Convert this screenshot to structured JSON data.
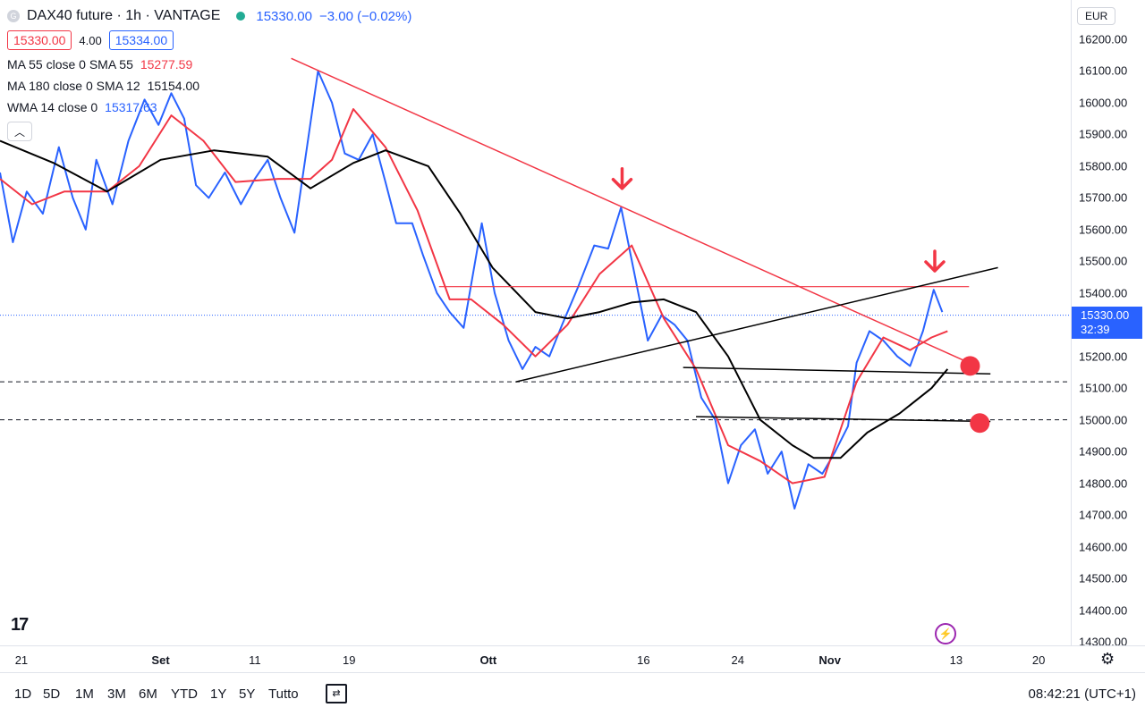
{
  "header": {
    "symbol": "DAX40 future · 1h · VANTAGE",
    "last": "15330.00",
    "change": "−3.00 (−0.02%)",
    "bid": "15330.00",
    "spread": "4.00",
    "ask": "15334.00"
  },
  "indicators": [
    {
      "label": "MA 55 close 0 SMA 55",
      "value": "15277.59",
      "color": "#f23645"
    },
    {
      "label": "MA 180 close 0 SMA 12",
      "value": "15154.00",
      "color": "#131722"
    },
    {
      "label": "WMA 14 close 0",
      "value": "15317.63",
      "color": "#2962ff"
    }
  ],
  "colors": {
    "price": "#2962ff",
    "ma55": "#f23645",
    "ma180": "#000000",
    "trend_red": "#f23645",
    "marker": "#f23645"
  },
  "currency": "EUR",
  "last_price_label": "15330.00",
  "countdown": "32:39",
  "clock": "08:42:21 (UTC+1)",
  "timeframes": [
    "1D",
    "5D",
    "1M",
    "3M",
    "6M",
    "YTD",
    "1Y",
    "5Y",
    "Tutto"
  ],
  "icons": [
    "compare-icon",
    "settings-gear-icon",
    "tradingview-logo-icon",
    "bolt-icon",
    "arrow-down-icon"
  ],
  "chart_data": {
    "type": "line",
    "ylim": [
      14300,
      16200
    ],
    "y_ticks": [
      16200,
      16100,
      16000,
      15900,
      15800,
      15700,
      15600,
      15500,
      15400,
      15300,
      15200,
      15100,
      15000,
      14900,
      14800,
      14700,
      14600,
      14500,
      14400,
      14300
    ],
    "y_tick_labels": [
      "16200.00",
      "16100.00",
      "16000.00",
      "15900.00",
      "15800.00",
      "15700.00",
      "15600.00",
      "15500.00",
      "15400.00",
      "15300.00",
      "15200.00",
      "15100.00",
      "15000.00",
      "14900.00",
      "14800.00",
      "14700.00",
      "14600.00",
      "14500.00",
      "14400.00",
      "14300.00"
    ],
    "x_ticks": [
      {
        "label": "21",
        "t": 0.02
      },
      {
        "label": "Set",
        "t": 0.15
      },
      {
        "label": "11",
        "t": 0.238
      },
      {
        "label": "19",
        "t": 0.326
      },
      {
        "label": "Ott",
        "t": 0.456
      },
      {
        "label": "16",
        "t": 0.601
      },
      {
        "label": "24",
        "t": 0.689
      },
      {
        "label": "Nov",
        "t": 0.775
      },
      {
        "label": "13",
        "t": 0.893
      },
      {
        "label": "20",
        "t": 0.97
      }
    ],
    "series": [
      {
        "key": "price",
        "points": [
          [
            0,
            15780
          ],
          [
            0.012,
            15560
          ],
          [
            0.025,
            15720
          ],
          [
            0.04,
            15650
          ],
          [
            0.055,
            15860
          ],
          [
            0.068,
            15700
          ],
          [
            0.08,
            15600
          ],
          [
            0.09,
            15820
          ],
          [
            0.105,
            15680
          ],
          [
            0.12,
            15880
          ],
          [
            0.135,
            16010
          ],
          [
            0.148,
            15930
          ],
          [
            0.16,
            16030
          ],
          [
            0.172,
            15950
          ],
          [
            0.183,
            15740
          ],
          [
            0.195,
            15700
          ],
          [
            0.21,
            15780
          ],
          [
            0.225,
            15680
          ],
          [
            0.238,
            15760
          ],
          [
            0.25,
            15820
          ],
          [
            0.262,
            15700
          ],
          [
            0.275,
            15590
          ],
          [
            0.285,
            15820
          ],
          [
            0.297,
            16100
          ],
          [
            0.31,
            16000
          ],
          [
            0.322,
            15840
          ],
          [
            0.335,
            15820
          ],
          [
            0.348,
            15900
          ],
          [
            0.36,
            15750
          ],
          [
            0.37,
            15620
          ],
          [
            0.385,
            15620
          ],
          [
            0.395,
            15520
          ],
          [
            0.408,
            15400
          ],
          [
            0.42,
            15340
          ],
          [
            0.433,
            15290
          ],
          [
            0.45,
            15620
          ],
          [
            0.462,
            15400
          ],
          [
            0.475,
            15250
          ],
          [
            0.488,
            15160
          ],
          [
            0.5,
            15230
          ],
          [
            0.513,
            15200
          ],
          [
            0.525,
            15300
          ],
          [
            0.54,
            15420
          ],
          [
            0.555,
            15550
          ],
          [
            0.568,
            15540
          ],
          [
            0.58,
            15670
          ],
          [
            0.592,
            15470
          ],
          [
            0.605,
            15250
          ],
          [
            0.618,
            15330
          ],
          [
            0.63,
            15300
          ],
          [
            0.642,
            15250
          ],
          [
            0.655,
            15070
          ],
          [
            0.668,
            15000
          ],
          [
            0.68,
            14800
          ],
          [
            0.692,
            14920
          ],
          [
            0.705,
            14970
          ],
          [
            0.717,
            14830
          ],
          [
            0.73,
            14900
          ],
          [
            0.742,
            14720
          ],
          [
            0.755,
            14860
          ],
          [
            0.768,
            14830
          ],
          [
            0.78,
            14900
          ],
          [
            0.792,
            14980
          ],
          [
            0.8,
            15180
          ],
          [
            0.812,
            15280
          ],
          [
            0.825,
            15250
          ],
          [
            0.838,
            15200
          ],
          [
            0.85,
            15170
          ],
          [
            0.862,
            15280
          ],
          [
            0.872,
            15410
          ],
          [
            0.88,
            15340
          ]
        ],
        "color": "#2962ff"
      },
      {
        "key": "ma55",
        "points": [
          [
            0,
            15760
          ],
          [
            0.03,
            15680
          ],
          [
            0.06,
            15720
          ],
          [
            0.1,
            15720
          ],
          [
            0.13,
            15800
          ],
          [
            0.16,
            15960
          ],
          [
            0.19,
            15880
          ],
          [
            0.22,
            15750
          ],
          [
            0.26,
            15760
          ],
          [
            0.29,
            15760
          ],
          [
            0.31,
            15820
          ],
          [
            0.33,
            15980
          ],
          [
            0.36,
            15860
          ],
          [
            0.39,
            15660
          ],
          [
            0.42,
            15380
          ],
          [
            0.44,
            15380
          ],
          [
            0.47,
            15300
          ],
          [
            0.5,
            15200
          ],
          [
            0.53,
            15300
          ],
          [
            0.56,
            15460
          ],
          [
            0.59,
            15550
          ],
          [
            0.62,
            15320
          ],
          [
            0.65,
            15160
          ],
          [
            0.68,
            14920
          ],
          [
            0.71,
            14870
          ],
          [
            0.74,
            14800
          ],
          [
            0.77,
            14820
          ],
          [
            0.8,
            15120
          ],
          [
            0.825,
            15260
          ],
          [
            0.85,
            15220
          ],
          [
            0.87,
            15260
          ],
          [
            0.885,
            15280
          ]
        ],
        "color": "#f23645"
      },
      {
        "key": "ma180",
        "points": [
          [
            0,
            15880
          ],
          [
            0.05,
            15810
          ],
          [
            0.1,
            15720
          ],
          [
            0.15,
            15820
          ],
          [
            0.2,
            15850
          ],
          [
            0.25,
            15830
          ],
          [
            0.29,
            15730
          ],
          [
            0.33,
            15810
          ],
          [
            0.36,
            15850
          ],
          [
            0.4,
            15800
          ],
          [
            0.43,
            15650
          ],
          [
            0.46,
            15480
          ],
          [
            0.5,
            15340
          ],
          [
            0.53,
            15320
          ],
          [
            0.56,
            15340
          ],
          [
            0.59,
            15370
          ],
          [
            0.62,
            15380
          ],
          [
            0.65,
            15340
          ],
          [
            0.68,
            15200
          ],
          [
            0.71,
            15000
          ],
          [
            0.74,
            14920
          ],
          [
            0.76,
            14880
          ],
          [
            0.785,
            14880
          ],
          [
            0.81,
            14960
          ],
          [
            0.84,
            15020
          ],
          [
            0.87,
            15100
          ],
          [
            0.885,
            15160
          ]
        ],
        "color": "#000000"
      }
    ],
    "trendlines": [
      {
        "from": [
          0.272,
          16140
        ],
        "to": [
          0.905,
          15180
        ],
        "color": "#f23645",
        "width": 1.5
      },
      {
        "from": [
          0.41,
          15420
        ],
        "to": [
          0.905,
          15420
        ],
        "color": "#f23645",
        "width": 1.2
      },
      {
        "from": [
          0.482,
          15120
        ],
        "to": [
          0.932,
          15480
        ],
        "color": "#000000",
        "width": 1.5
      },
      {
        "from": [
          0.638,
          15165
        ],
        "to": [
          0.925,
          15145
        ],
        "color": "#000000",
        "width": 1.5
      },
      {
        "from": [
          0.65,
          15010
        ],
        "to": [
          0.925,
          14995
        ],
        "color": "#000000",
        "width": 1.5
      }
    ],
    "horizontal_dashed": [
      15120,
      15000
    ],
    "last_price_line": 15330,
    "markers": [
      {
        "type": "arrow-down",
        "at": [
          0.581,
          15730
        ]
      },
      {
        "type": "arrow-down",
        "at": [
          0.873,
          15470
        ]
      },
      {
        "type": "dot",
        "at": [
          0.906,
          15170
        ]
      },
      {
        "type": "dot",
        "at": [
          0.915,
          14990
        ]
      }
    ]
  }
}
